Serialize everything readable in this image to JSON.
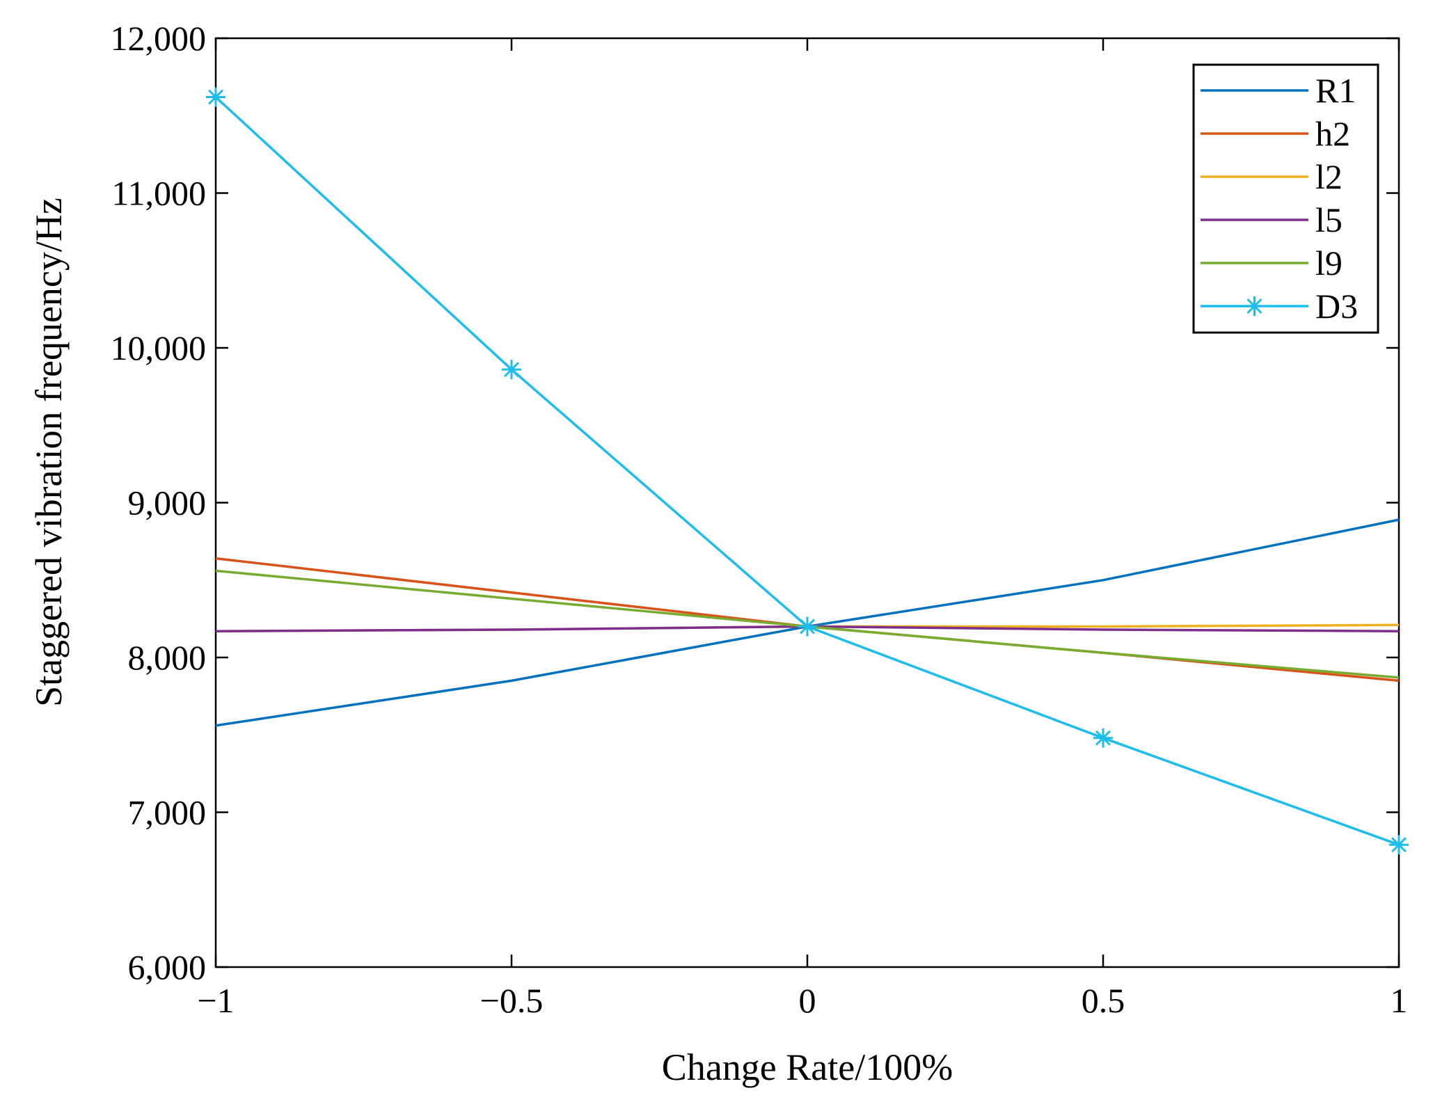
{
  "chart_data": {
    "type": "line",
    "title": "",
    "xlabel": "Change Rate/100%",
    "ylabel": "Staggered vibration frequency/Hz",
    "xlim": [
      -1,
      1
    ],
    "ylim": [
      6000,
      12000
    ],
    "xticks": [
      -1,
      -0.5,
      0,
      0.5,
      1
    ],
    "xtick_labels": [
      "−1",
      "−0.5",
      "0",
      "0.5",
      "1"
    ],
    "yticks": [
      6000,
      7000,
      8000,
      9000,
      10000,
      11000,
      12000
    ],
    "ytick_labels": [
      "6,000",
      "7,000",
      "8,000",
      "9,000",
      "10,000",
      "11,000",
      "12,000"
    ],
    "grid": false,
    "legend_position": "top-right",
    "x": [
      -1,
      -0.5,
      0,
      0.5,
      1
    ],
    "series": [
      {
        "name": "R1",
        "color": "#0072BD",
        "marker": "none",
        "values": [
          7560,
          7850,
          8200,
          8500,
          8890
        ]
      },
      {
        "name": "h2",
        "color": "#D95319",
        "marker": "none",
        "values": [
          8640,
          8420,
          8200,
          8030,
          7850
        ]
      },
      {
        "name": "l2",
        "color": "#EDB120",
        "marker": "none",
        "values": [
          8170,
          8180,
          8200,
          8200,
          8210
        ]
      },
      {
        "name": "l5",
        "color": "#7E2F8E",
        "marker": "none",
        "values": [
          8170,
          8180,
          8200,
          8180,
          8170
        ]
      },
      {
        "name": "l9",
        "color": "#77AC30",
        "marker": "none",
        "values": [
          8560,
          8380,
          8200,
          8030,
          7870
        ]
      },
      {
        "name": "D3",
        "color": "#1CBDEB",
        "marker": "asterisk",
        "values": [
          11620,
          9860,
          8200,
          7480,
          6790
        ]
      }
    ]
  }
}
